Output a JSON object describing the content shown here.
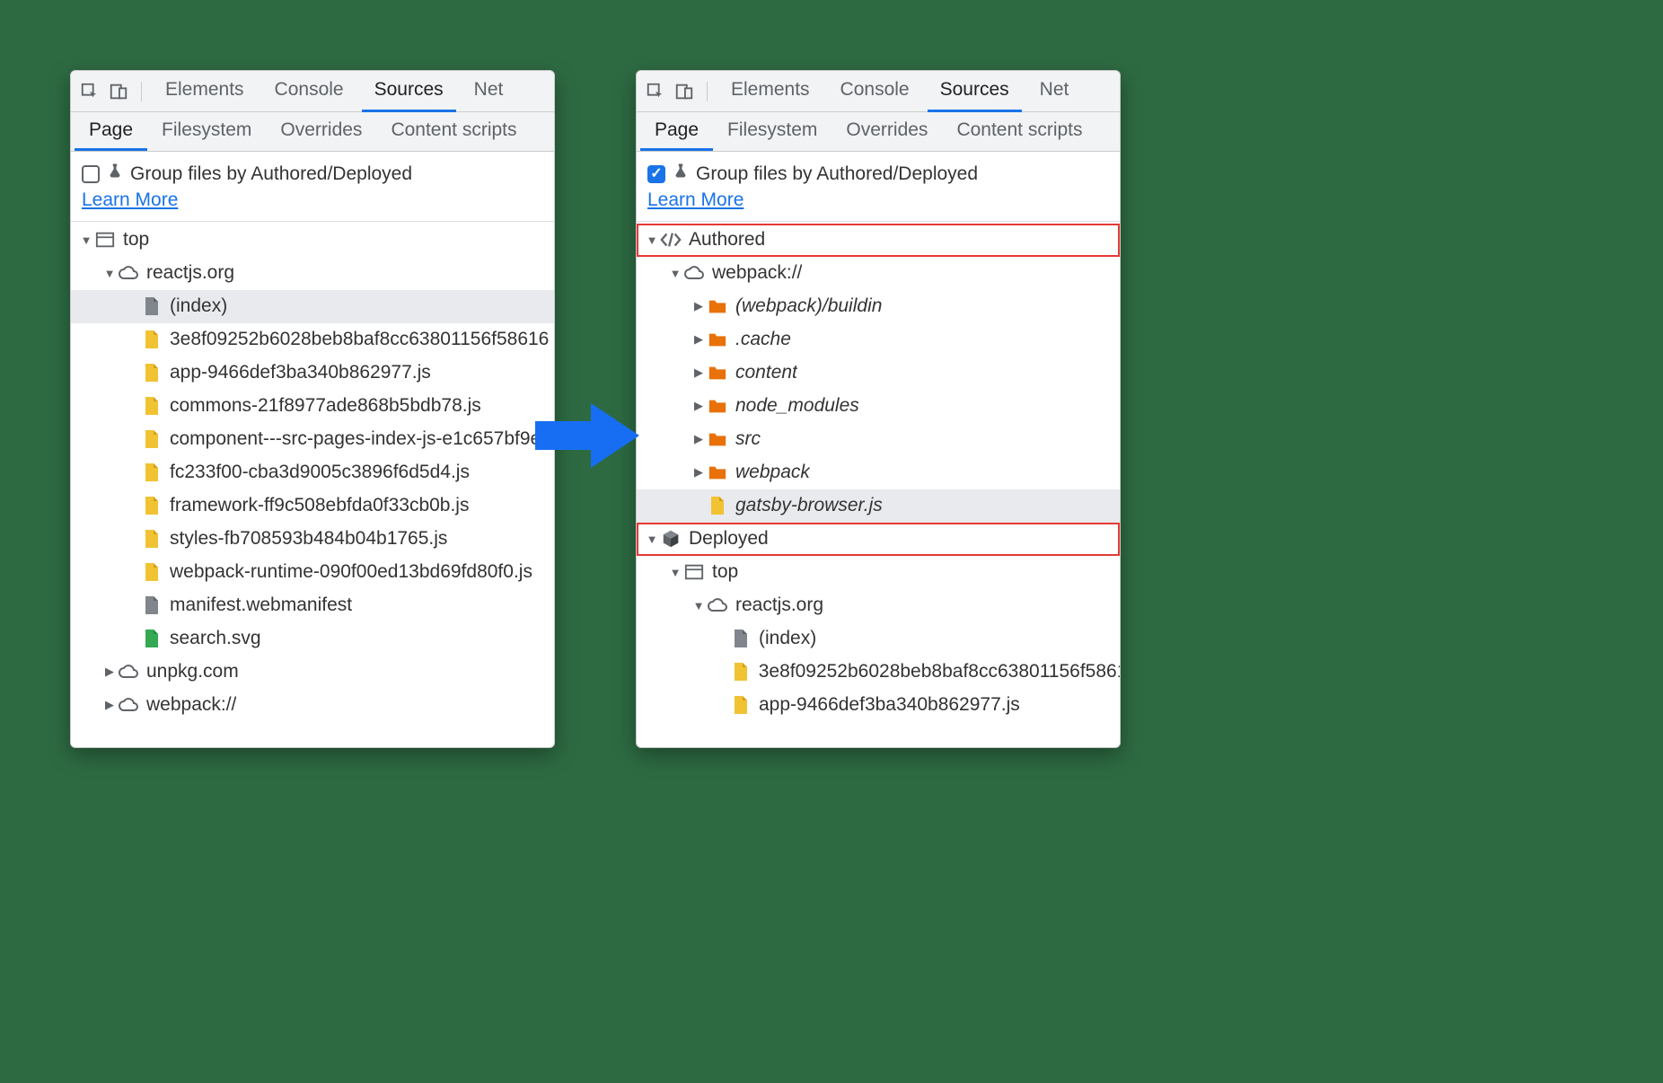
{
  "topTabs": {
    "elements": "Elements",
    "console": "Console",
    "sources": "Sources",
    "network": "Net"
  },
  "subTabs": {
    "page": "Page",
    "filesystem": "Filesystem",
    "overrides": "Overrides",
    "contentScripts": "Content scripts"
  },
  "groupBy": {
    "label": "Group files by Authored/Deployed",
    "learnMore": "Learn More"
  },
  "colors": {
    "accent": "#1a73e8",
    "arrow": "#176ef2",
    "highlight": "#e53935",
    "folderOrange": "#e8710a",
    "fileYellow": "#f1c232",
    "fileGray": "#80868b",
    "fileGreen": "#34a853",
    "iconGray": "#5f6368",
    "selectedBg": "#e8eaed"
  },
  "left": {
    "checked": false,
    "tree": [
      {
        "indent": 0,
        "arrow": "expanded",
        "icon": "window",
        "label": "top"
      },
      {
        "indent": 1,
        "arrow": "expanded",
        "icon": "cloud",
        "label": "reactjs.org"
      },
      {
        "indent": 2,
        "arrow": "none",
        "icon": "file-gray",
        "label": "(index)",
        "selected": true
      },
      {
        "indent": 2,
        "arrow": "none",
        "icon": "file-yellow",
        "label": "3e8f09252b6028beb8baf8cc63801156f58616"
      },
      {
        "indent": 2,
        "arrow": "none",
        "icon": "file-yellow",
        "label": "app-9466def3ba340b862977.js"
      },
      {
        "indent": 2,
        "arrow": "none",
        "icon": "file-yellow",
        "label": "commons-21f8977ade868b5bdb78.js"
      },
      {
        "indent": 2,
        "arrow": "none",
        "icon": "file-yellow",
        "label": "component---src-pages-index-js-e1c657bf9e"
      },
      {
        "indent": 2,
        "arrow": "none",
        "icon": "file-yellow",
        "label": "fc233f00-cba3d9005c3896f6d5d4.js"
      },
      {
        "indent": 2,
        "arrow": "none",
        "icon": "file-yellow",
        "label": "framework-ff9c508ebfda0f33cb0b.js"
      },
      {
        "indent": 2,
        "arrow": "none",
        "icon": "file-yellow",
        "label": "styles-fb708593b484b04b1765.js"
      },
      {
        "indent": 2,
        "arrow": "none",
        "icon": "file-yellow",
        "label": "webpack-runtime-090f00ed13bd69fd80f0.js"
      },
      {
        "indent": 2,
        "arrow": "none",
        "icon": "file-gray",
        "label": "manifest.webmanifest"
      },
      {
        "indent": 2,
        "arrow": "none",
        "icon": "file-green",
        "label": "search.svg"
      },
      {
        "indent": 1,
        "arrow": "collapsed",
        "icon": "cloud",
        "label": "unpkg.com"
      },
      {
        "indent": 1,
        "arrow": "collapsed",
        "icon": "cloud",
        "label": "webpack://"
      }
    ]
  },
  "right": {
    "checked": true,
    "tree": [
      {
        "indent": 0,
        "arrow": "expanded",
        "icon": "code",
        "label": "Authored",
        "highlight": true
      },
      {
        "indent": 1,
        "arrow": "expanded",
        "icon": "cloud",
        "label": "webpack://"
      },
      {
        "indent": 2,
        "arrow": "collapsed",
        "icon": "folder-orange",
        "label": "(webpack)/buildin",
        "italic": true
      },
      {
        "indent": 2,
        "arrow": "collapsed",
        "icon": "folder-orange",
        "label": ".cache",
        "italic": true
      },
      {
        "indent": 2,
        "arrow": "collapsed",
        "icon": "folder-orange",
        "label": "content",
        "italic": true
      },
      {
        "indent": 2,
        "arrow": "collapsed",
        "icon": "folder-orange",
        "label": "node_modules",
        "italic": true
      },
      {
        "indent": 2,
        "arrow": "collapsed",
        "icon": "folder-orange",
        "label": "src",
        "italic": true
      },
      {
        "indent": 2,
        "arrow": "collapsed",
        "icon": "folder-orange",
        "label": "webpack",
        "italic": true
      },
      {
        "indent": 2,
        "arrow": "none",
        "icon": "file-yellow",
        "label": "gatsby-browser.js",
        "italic": true,
        "selected": true
      },
      {
        "indent": 0,
        "arrow": "expanded",
        "icon": "cube",
        "label": "Deployed",
        "highlight": true
      },
      {
        "indent": 1,
        "arrow": "expanded",
        "icon": "window",
        "label": "top"
      },
      {
        "indent": 2,
        "arrow": "expanded",
        "icon": "cloud",
        "label": "reactjs.org"
      },
      {
        "indent": 3,
        "arrow": "none",
        "icon": "file-gray",
        "label": "(index)"
      },
      {
        "indent": 3,
        "arrow": "none",
        "icon": "file-yellow",
        "label": "3e8f09252b6028beb8baf8cc63801156f5861"
      },
      {
        "indent": 3,
        "arrow": "none",
        "icon": "file-yellow",
        "label": "app-9466def3ba340b862977.js"
      }
    ]
  }
}
